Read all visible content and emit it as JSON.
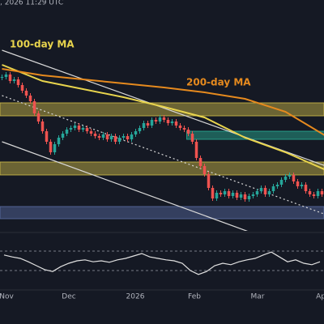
{
  "header": ", 2026 11:29 UTC",
  "chart_data": {
    "type": "candlestick",
    "ylim": [
      15,
      300
    ],
    "close": [
      205,
      208,
      200,
      202,
      195,
      188,
      182,
      175,
      160,
      150,
      138,
      125,
      112,
      122,
      130,
      135,
      140,
      142,
      145,
      140,
      142,
      138,
      135,
      132,
      130,
      134,
      128,
      132,
      125,
      130,
      132,
      128,
      134,
      138,
      142,
      148,
      145,
      152,
      150,
      155,
      152,
      148,
      150,
      145,
      142,
      140,
      135,
      125,
      105,
      95,
      85,
      68,
      55,
      62,
      60,
      64,
      58,
      62,
      56,
      60,
      54,
      58,
      60,
      64,
      68,
      60,
      64,
      70,
      72,
      78,
      82,
      84,
      76,
      70,
      72,
      64,
      60,
      58,
      64,
      60
    ],
    "up_color": "#26a69a",
    "down_color": "#ef5350",
    "series": [
      {
        "name": "100-day MA",
        "color": "#e8d44d",
        "x": [
          0,
          10,
          20,
          30,
          40,
          50,
          60,
          70,
          80
        ],
        "values": [
          220,
          200,
          190,
          180,
          168,
          155,
          130,
          112,
          90
        ]
      },
      {
        "name": "200-day MA",
        "color": "#e68a1e",
        "x": [
          0,
          10,
          20,
          30,
          40,
          50,
          60,
          70,
          80
        ],
        "values": [
          215,
          207,
          202,
          197,
          192,
          186,
          178,
          162,
          132
        ]
      }
    ],
    "zones": [
      {
        "y": [
          157,
          173
        ],
        "color": "#d4c04a"
      },
      {
        "y": [
          84,
          100
        ],
        "color": "#d4c04a"
      },
      {
        "y": [
          30,
          45
        ],
        "color": "#5b6fa8"
      },
      {
        "y": [
          128,
          138
        ],
        "x": [
          45.6,
          80
        ],
        "color": "#2bb39a"
      }
    ],
    "trendlines": [
      {
        "x": [
          0,
          80
        ],
        "y": [
          238,
          95
        ],
        "style": "solid"
      },
      {
        "x": [
          0,
          62
        ],
        "y": [
          125,
          12
        ],
        "style": "solid"
      },
      {
        "x": [
          0,
          80
        ],
        "y": [
          182,
          35
        ],
        "style": "dotted"
      }
    ],
    "rsi": {
      "ylim": [
        0,
        100
      ],
      "levels": [
        30,
        70
      ],
      "color": "#e0e0e0",
      "values": [
        62,
        58,
        55,
        48,
        40,
        32,
        28,
        38,
        45,
        50,
        52,
        48,
        50,
        47,
        52,
        55,
        60,
        65,
        58,
        55,
        52,
        50,
        45,
        30,
        22,
        28,
        40,
        45,
        42,
        48,
        52,
        55,
        62,
        68,
        58,
        48,
        52,
        45,
        42,
        48
      ]
    },
    "x_labels": [
      "Nov",
      "Dec",
      "2026",
      "Feb",
      "Mar",
      "Ap"
    ]
  }
}
